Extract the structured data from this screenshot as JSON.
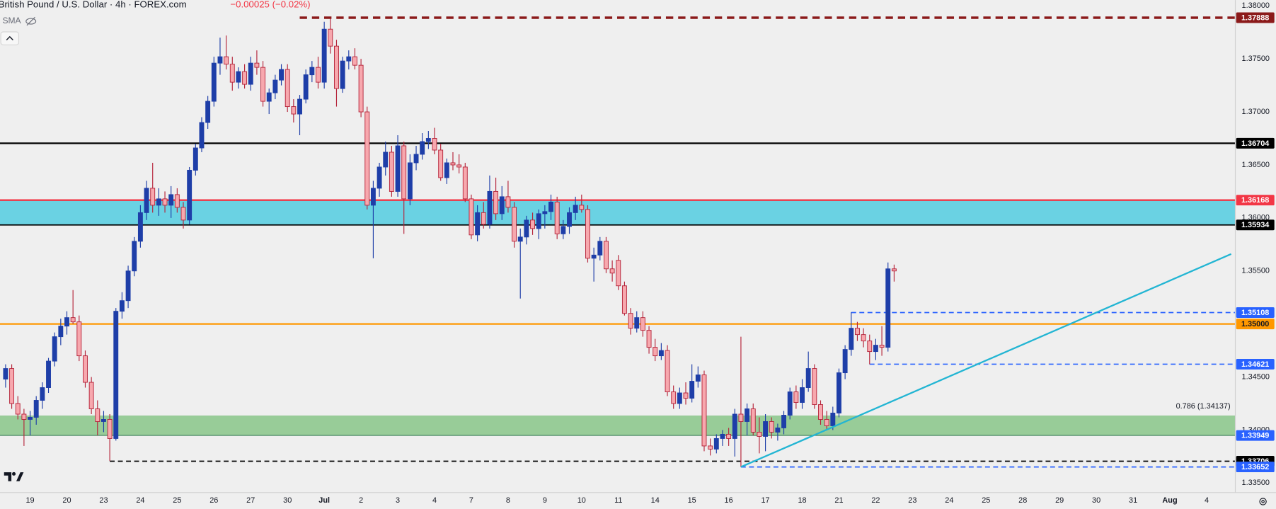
{
  "header": {
    "title": "British Pound / U.S. Dollar · 4h · FOREX.com",
    "change": "−0.00025 (−0.02%)",
    "indicator": "SMA"
  },
  "chart_data": {
    "type": "candlestick",
    "up_color": "#1e3ea8",
    "down_color": "#f7a8ae",
    "down_border": "#b5243a",
    "ylim": [
      1.3341,
      1.38054
    ],
    "yticks": [
      {
        "value": 1.38,
        "label": "1.38000"
      },
      {
        "value": 1.375,
        "label": "1.37500"
      },
      {
        "value": 1.37,
        "label": "1.37000"
      },
      {
        "value": 1.365,
        "label": "1.36500"
      },
      {
        "value": 1.36,
        "label": "1.36000"
      },
      {
        "value": 1.355,
        "label": "1.35500"
      },
      {
        "value": 1.345,
        "label": "1.34500"
      },
      {
        "value": 1.34,
        "label": "1.34000"
      },
      {
        "value": 1.335,
        "label": "1.33500"
      }
    ],
    "days": [
      null,
      "19",
      "20",
      "23",
      "24",
      "25",
      "26",
      "27",
      "30",
      "Jul",
      "2",
      "3",
      "4",
      "7",
      "8",
      "9",
      "10",
      "11",
      "14",
      "15",
      "16",
      "17",
      "18",
      "21",
      "22",
      "23",
      "24",
      "25",
      "28",
      "29",
      "30",
      "31",
      "Aug",
      "4"
    ],
    "candles": [
      null,
      null,
      [
        1.3448,
        1.3462,
        1.344,
        1.3458
      ],
      [
        1.3458,
        1.3462,
        1.342,
        1.3425
      ],
      [
        1.3425,
        1.3432,
        1.341,
        1.3415
      ],
      [
        1.3415,
        1.342,
        1.3385,
        1.341
      ],
      [
        1.341,
        1.3418,
        1.3395,
        1.3412
      ],
      [
        1.3412,
        1.3432,
        1.3405,
        1.3428
      ],
      [
        1.3428,
        1.3445,
        1.342,
        1.344
      ],
      [
        1.344,
        1.3468,
        1.3435,
        1.3465
      ],
      [
        1.3465,
        1.3492,
        1.346,
        1.3488
      ],
      [
        1.3488,
        1.3505,
        1.348,
        1.3498
      ],
      [
        1.3498,
        1.3512,
        1.349,
        1.3506
      ],
      [
        1.3506,
        1.3532,
        1.35,
        1.3502
      ],
      [
        1.3502,
        1.3508,
        1.3465,
        1.347
      ],
      [
        1.347,
        1.3475,
        1.344,
        1.3445
      ],
      [
        1.3445,
        1.345,
        1.3415,
        1.342
      ],
      [
        1.342,
        1.3428,
        1.3395,
        1.3408
      ],
      [
        1.3408,
        1.3418,
        1.3398,
        1.341
      ],
      [
        1.341,
        1.3415,
        1.3371,
        1.3392
      ],
      [
        1.3392,
        1.3515,
        1.339,
        1.3512
      ],
      [
        1.3512,
        1.353,
        1.3505,
        1.3522
      ],
      [
        1.3522,
        1.3555,
        1.3515,
        1.355
      ],
      [
        1.355,
        1.3582,
        1.3545,
        1.3578
      ],
      [
        1.3578,
        1.3612,
        1.3572,
        1.3605
      ],
      [
        1.3605,
        1.3635,
        1.3598,
        1.3628
      ],
      [
        1.3628,
        1.3652,
        1.3605,
        1.3612
      ],
      [
        1.3612,
        1.3628,
        1.3602,
        1.3618
      ],
      [
        1.3618,
        1.3625,
        1.3605,
        1.3612
      ],
      [
        1.3612,
        1.363,
        1.36,
        1.3622
      ],
      [
        1.3622,
        1.3628,
        1.3605,
        1.361
      ],
      [
        1.361,
        1.3615,
        1.359,
        1.3598
      ],
      [
        1.3598,
        1.3648,
        1.3594,
        1.3645
      ],
      [
        1.3645,
        1.367,
        1.364,
        1.3666
      ],
      [
        1.3666,
        1.3695,
        1.3662,
        1.369
      ],
      [
        1.369,
        1.3715,
        1.3684,
        1.371
      ],
      [
        1.371,
        1.3752,
        1.3705,
        1.3746
      ],
      [
        1.3746,
        1.377,
        1.3735,
        1.3752
      ],
      [
        1.3752,
        1.3772,
        1.374,
        1.3745
      ],
      [
        1.3745,
        1.3752,
        1.372,
        1.3728
      ],
      [
        1.3728,
        1.3742,
        1.3722,
        1.3738
      ],
      [
        1.3738,
        1.3745,
        1.3722,
        1.3726
      ],
      [
        1.3726,
        1.3752,
        1.372,
        1.3746
      ],
      [
        1.3746,
        1.3758,
        1.3735,
        1.3742
      ],
      [
        1.3742,
        1.3748,
        1.3705,
        1.371
      ],
      [
        1.371,
        1.3722,
        1.3698,
        1.3718
      ],
      [
        1.3718,
        1.3735,
        1.3712,
        1.373
      ],
      [
        1.373,
        1.3745,
        1.3725,
        1.374
      ],
      [
        1.374,
        1.3745,
        1.37,
        1.3705
      ],
      [
        1.3705,
        1.3712,
        1.369,
        1.3698
      ],
      [
        1.3698,
        1.3716,
        1.3678,
        1.3712
      ],
      [
        1.3712,
        1.374,
        1.3708,
        1.3735
      ],
      [
        1.3735,
        1.3748,
        1.3728,
        1.3742
      ],
      [
        1.3742,
        1.3752,
        1.3722,
        1.3728
      ],
      [
        1.3728,
        1.3785,
        1.3722,
        1.3778
      ],
      [
        1.3778,
        1.3788,
        1.3755,
        1.3762
      ],
      [
        1.3762,
        1.3768,
        1.3705,
        1.3722
      ],
      [
        1.3722,
        1.3752,
        1.3718,
        1.3748
      ],
      [
        1.3748,
        1.3758,
        1.374,
        1.3752
      ],
      [
        1.3752,
        1.376,
        1.374,
        1.3744
      ],
      [
        1.3744,
        1.375,
        1.3695,
        1.37
      ],
      [
        1.37,
        1.3705,
        1.3608,
        1.3612
      ],
      [
        1.3612,
        1.3635,
        1.3562,
        1.3628
      ],
      [
        1.3628,
        1.3652,
        1.362,
        1.3648
      ],
      [
        1.3648,
        1.3672,
        1.364,
        1.3662
      ],
      [
        1.3662,
        1.3668,
        1.362,
        1.3625
      ],
      [
        1.3625,
        1.3678,
        1.362,
        1.3668
      ],
      [
        1.3668,
        1.3672,
        1.3585,
        1.3618
      ],
      [
        1.3618,
        1.366,
        1.3612,
        1.3652
      ],
      [
        1.3652,
        1.3668,
        1.3645,
        1.366
      ],
      [
        1.366,
        1.368,
        1.3655,
        1.3672
      ],
      [
        1.3672,
        1.3682,
        1.3665,
        1.3675
      ],
      [
        1.3675,
        1.3685,
        1.366,
        1.3664
      ],
      [
        1.3664,
        1.367,
        1.3635,
        1.3638
      ],
      [
        1.3638,
        1.3656,
        1.3632,
        1.3652
      ],
      [
        1.3652,
        1.3662,
        1.3645,
        1.365
      ],
      [
        1.365,
        1.366,
        1.3642,
        1.3648
      ],
      [
        1.3648,
        1.3652,
        1.3615,
        1.3618
      ],
      [
        1.3618,
        1.3622,
        1.358,
        1.3584
      ],
      [
        1.3584,
        1.3612,
        1.3578,
        1.3605
      ],
      [
        1.3605,
        1.3615,
        1.359,
        1.3594
      ],
      [
        1.3594,
        1.364,
        1.359,
        1.3625
      ],
      [
        1.3625,
        1.3638,
        1.3598,
        1.3604
      ],
      [
        1.3604,
        1.363,
        1.3598,
        1.362
      ],
      [
        1.362,
        1.3635,
        1.3605,
        1.361
      ],
      [
        1.361,
        1.3615,
        1.3572,
        1.3578
      ],
      [
        1.3578,
        1.359,
        1.3524,
        1.3582
      ],
      [
        1.3582,
        1.3602,
        1.3575,
        1.3598
      ],
      [
        1.3598,
        1.3605,
        1.3584,
        1.359
      ],
      [
        1.359,
        1.3608,
        1.358,
        1.3604
      ],
      [
        1.3604,
        1.3612,
        1.359,
        1.3606
      ],
      [
        1.3606,
        1.3622,
        1.3598,
        1.3615
      ],
      [
        1.3615,
        1.362,
        1.358,
        1.3585
      ],
      [
        1.3585,
        1.3598,
        1.358,
        1.3592
      ],
      [
        1.3592,
        1.361,
        1.3585,
        1.3605
      ],
      [
        1.3605,
        1.362,
        1.3598,
        1.3612
      ],
      [
        1.3612,
        1.3622,
        1.3605,
        1.3608
      ],
      [
        1.3608,
        1.3612,
        1.3558,
        1.3562
      ],
      [
        1.3562,
        1.3572,
        1.354,
        1.3565
      ],
      [
        1.3565,
        1.3582,
        1.356,
        1.3578
      ],
      [
        1.3578,
        1.3582,
        1.3548,
        1.3552
      ],
      [
        1.3552,
        1.356,
        1.354,
        1.3548
      ],
      [
        1.356,
        1.3565,
        1.3532,
        1.3536
      ],
      [
        1.3536,
        1.354,
        1.3508,
        1.351
      ],
      [
        1.351,
        1.3515,
        1.349,
        1.3496
      ],
      [
        1.3496,
        1.3512,
        1.3492,
        1.3506
      ],
      [
        1.3506,
        1.3512,
        1.3488,
        1.3494
      ],
      [
        1.3494,
        1.3498,
        1.3472,
        1.3478
      ],
      [
        1.3478,
        1.3486,
        1.3465,
        1.347
      ],
      [
        1.347,
        1.3482,
        1.3466,
        1.3475
      ],
      [
        1.3475,
        1.348,
        1.3432,
        1.3436
      ],
      [
        1.3436,
        1.3442,
        1.342,
        1.3425
      ],
      [
        1.3425,
        1.344,
        1.342,
        1.3435
      ],
      [
        1.3435,
        1.3445,
        1.3424,
        1.343
      ],
      [
        1.343,
        1.3462,
        1.3426,
        1.3446
      ],
      [
        1.3446,
        1.346,
        1.344,
        1.3452
      ],
      [
        1.3452,
        1.3456,
        1.338,
        1.3385
      ],
      [
        1.3385,
        1.3392,
        1.3376,
        1.3382
      ],
      [
        1.3382,
        1.3396,
        1.3378,
        1.3392
      ],
      [
        1.3392,
        1.34,
        1.3385,
        1.3396
      ],
      [
        1.3396,
        1.3402,
        1.3385,
        1.3392
      ],
      [
        1.3392,
        1.342,
        1.3375,
        1.3415
      ],
      [
        1.3415,
        1.3488,
        1.3365,
        1.3408
      ],
      [
        1.3408,
        1.3425,
        1.3395,
        1.342
      ],
      [
        1.342,
        1.3425,
        1.3395,
        1.3398
      ],
      [
        1.3398,
        1.3412,
        1.3378,
        1.3394
      ],
      [
        1.3394,
        1.3415,
        1.338,
        1.3408
      ],
      [
        1.3408,
        1.3412,
        1.3392,
        1.3398
      ],
      [
        1.3398,
        1.3406,
        1.339,
        1.3402
      ],
      [
        1.3402,
        1.3418,
        1.3396,
        1.3414
      ],
      [
        1.3414,
        1.344,
        1.341,
        1.3436
      ],
      [
        1.3436,
        1.3442,
        1.342,
        1.3426
      ],
      [
        1.3426,
        1.3448,
        1.342,
        1.344
      ],
      [
        1.344,
        1.3474,
        1.3436,
        1.3458
      ],
      [
        1.3458,
        1.3462,
        1.342,
        1.3424
      ],
      [
        1.3424,
        1.3428,
        1.3405,
        1.341
      ],
      [
        1.341,
        1.3418,
        1.34,
        1.3404
      ],
      [
        1.3404,
        1.3422,
        1.34,
        1.3416
      ],
      [
        1.3416,
        1.3458,
        1.3412,
        1.3454
      ],
      [
        1.3454,
        1.348,
        1.3448,
        1.3476
      ],
      [
        1.3476,
        1.3511,
        1.347,
        1.3496
      ],
      [
        1.3496,
        1.3502,
        1.3484,
        1.349
      ],
      [
        1.349,
        1.3496,
        1.3478,
        1.3484
      ],
      [
        1.3484,
        1.349,
        1.3462,
        1.3474
      ],
      [
        1.3474,
        1.3486,
        1.3466,
        1.348
      ],
      [
        1.348,
        1.3498,
        1.347,
        1.3478
      ],
      [
        1.3478,
        1.3558,
        1.3474,
        1.3552
      ],
      [
        1.3552,
        1.3556,
        1.354,
        1.355
      ]
    ],
    "zones": [
      {
        "low": 1.35934,
        "high": 1.36168,
        "color": "#62d0e1"
      },
      {
        "low": 1.33949,
        "high": 1.34137,
        "color": "#92c992"
      }
    ],
    "levels": [
      {
        "value": 1.37888,
        "label": "1.37888",
        "color": "#8b1a1a",
        "style": "dashed",
        "width": 3,
        "from": 50,
        "tag_color": "#8b1a1a",
        "tag_text": "#ffffff"
      },
      {
        "value": 1.36704,
        "label": "1.36704",
        "color": "#000000",
        "style": "solid",
        "width": 2,
        "from": 0,
        "tag_color": "#000000",
        "tag_text": "#ffffff"
      },
      {
        "value": 1.36168,
        "label": "1.36168",
        "color": "#f23645",
        "style": "solid",
        "width": 2,
        "from": 0,
        "tag_color": "#f23645",
        "tag_text": "#ffffff"
      },
      {
        "value": 1.35934,
        "label": "1.35934",
        "color": "#000000",
        "style": "solid",
        "width": 1.5,
        "from": 0,
        "tag_color": "#000000",
        "tag_text": "#ffffff"
      },
      {
        "value": 1.35108,
        "label": "1.35108",
        "color": "#2962ff",
        "style": "dashed",
        "width": 1.5,
        "from": 140,
        "tag_color": "#2962ff",
        "tag_text": "#ffffff"
      },
      {
        "value": 1.35,
        "label": "1.35000",
        "color": "#ff9800",
        "style": "solid",
        "width": 2,
        "from": 0,
        "tag_color": "#ff9800",
        "tag_text": "#131722"
      },
      {
        "value": 1.34621,
        "label": "1.34621",
        "color": "#2962ff",
        "style": "dashed",
        "width": 1.5,
        "from": 143,
        "tag_color": "#2962ff",
        "tag_text": "#ffffff"
      },
      {
        "value": 1.33949,
        "label": "1.33949",
        "color": "#3d7f5a",
        "style": "solid",
        "width": 1,
        "from": 0,
        "tag_color": "#2962ff",
        "tag_text": "#ffffff"
      },
      {
        "value": 1.33706,
        "label": "1.33706",
        "color": "#000000",
        "style": "dashed",
        "width": 1.5,
        "from": 19,
        "tag_color": "#000000",
        "tag_text": "#ffffff"
      },
      {
        "value": 1.33652,
        "label": "1.33652",
        "color": "#2962ff",
        "style": "dashed",
        "width": 1.5,
        "from": 122,
        "tag_color": "#2962ff",
        "tag_text": "#ffffff"
      }
    ],
    "trendline": {
      "from": [
        122,
        1.33652
      ],
      "to": [
        202,
        1.3566
      ],
      "color": "#22b5d3"
    },
    "annotation": "0.786 (1.34137)"
  }
}
